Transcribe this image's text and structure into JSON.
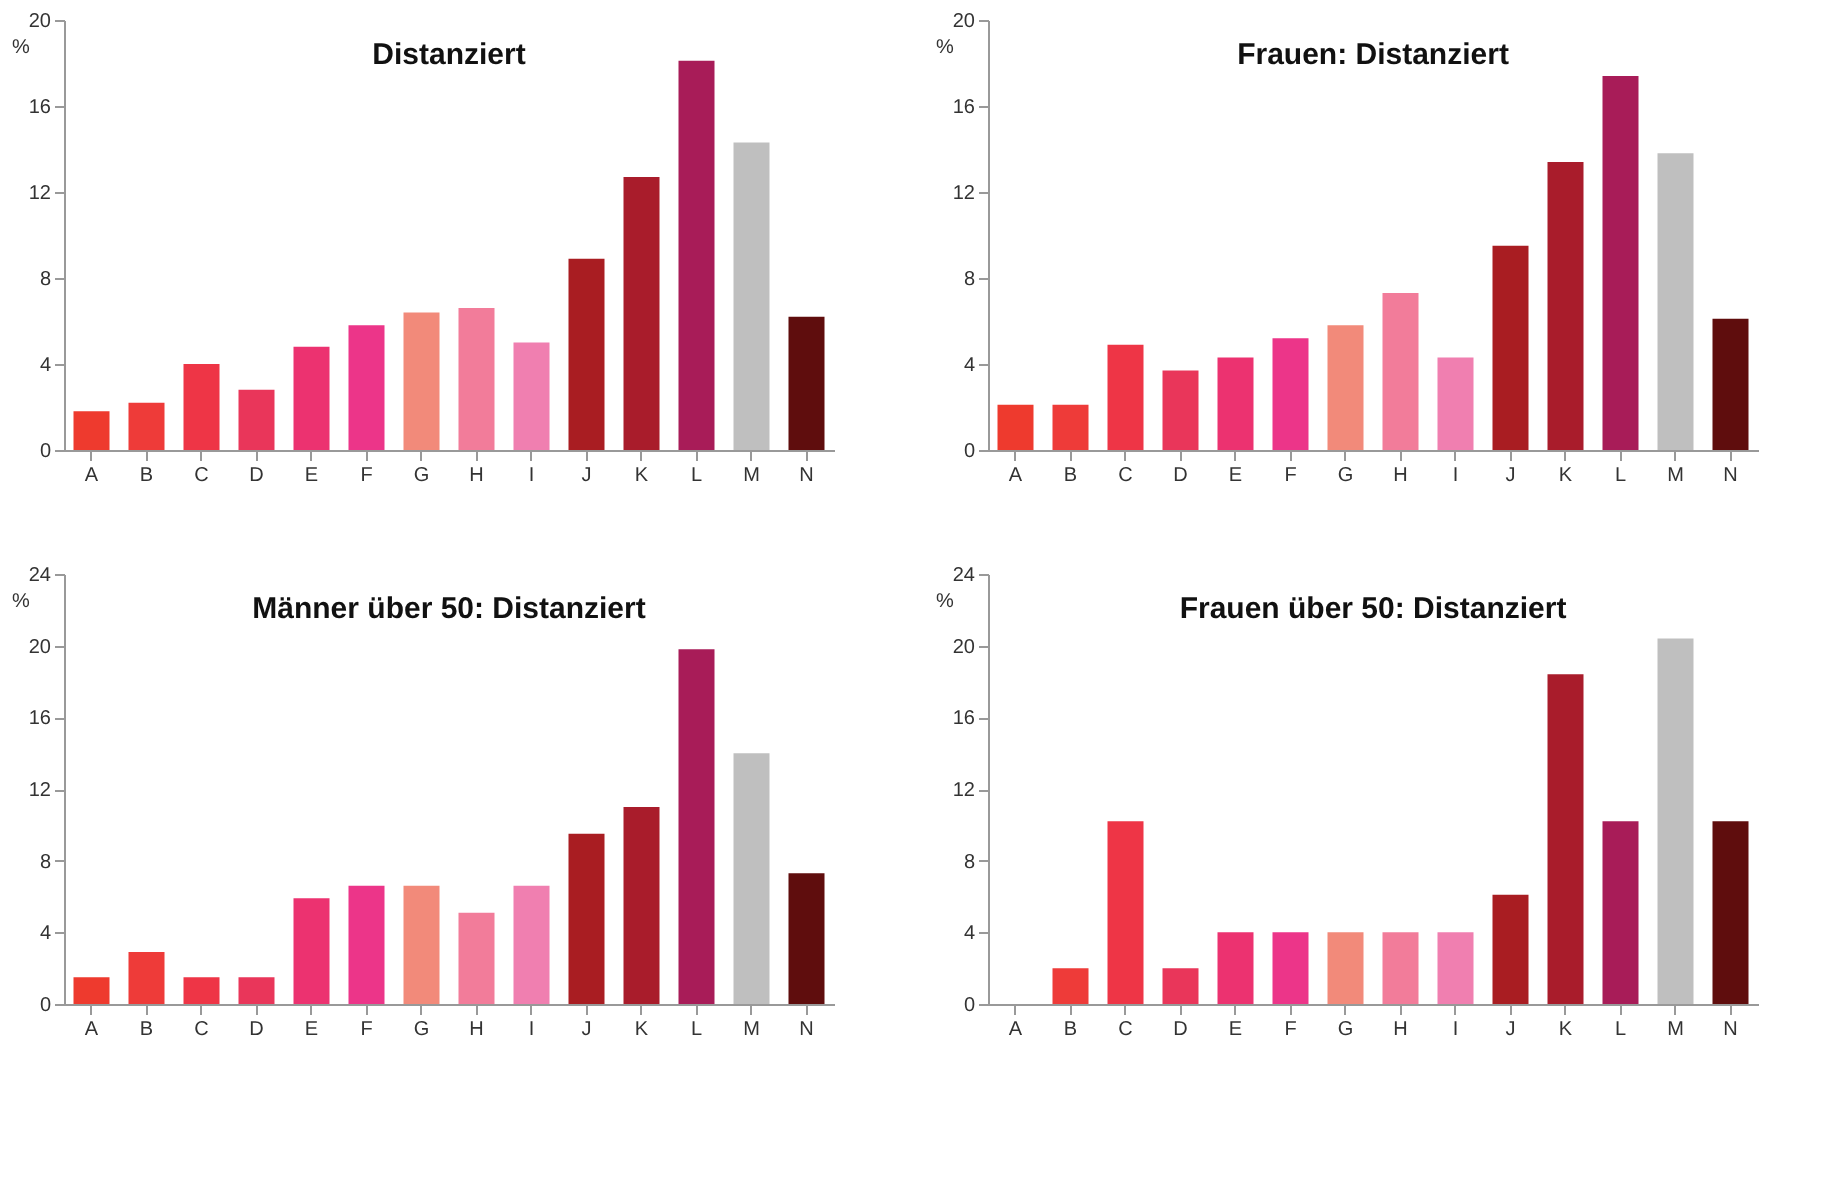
{
  "chart_data": [
    {
      "type": "bar",
      "title": "Distanziert",
      "ylabel": "%",
      "categories": [
        "A",
        "B",
        "C",
        "D",
        "E",
        "F",
        "G",
        "H",
        "I",
        "J",
        "K",
        "L",
        "M",
        "N"
      ],
      "values": [
        1.8,
        2.2,
        4.0,
        2.8,
        4.8,
        5.8,
        6.4,
        6.6,
        5.0,
        8.9,
        12.7,
        18.1,
        14.3,
        6.2
      ],
      "colors": [
        "#ee3a2e",
        "#ee3b39",
        "#ee3546",
        "#e9365a",
        "#ec3270",
        "#ec3589",
        "#f28a7a",
        "#f27c9a",
        "#f07fb0",
        "#a91d22",
        "#a91c2b",
        "#a81c58",
        "#bfbfbf",
        "#5f0d0d"
      ],
      "ylim": [
        0,
        20
      ],
      "yticks": [
        0,
        4,
        8,
        12,
        16,
        20
      ],
      "grid": false
    },
    {
      "type": "bar",
      "title": "Frauen: Distanziert",
      "ylabel": "%",
      "categories": [
        "A",
        "B",
        "C",
        "D",
        "E",
        "F",
        "G",
        "H",
        "I",
        "J",
        "K",
        "L",
        "M",
        "N"
      ],
      "values": [
        2.1,
        2.1,
        4.9,
        3.7,
        4.3,
        5.2,
        5.8,
        7.3,
        4.3,
        9.5,
        13.4,
        17.4,
        13.8,
        6.1
      ],
      "colors": [
        "#ee3a2e",
        "#ee3b39",
        "#ee3546",
        "#e9365a",
        "#ec3270",
        "#ec3589",
        "#f28a7a",
        "#f27c9a",
        "#f07fb0",
        "#a91d22",
        "#a91c2b",
        "#a81c58",
        "#bfbfbf",
        "#5f0d0d"
      ],
      "ylim": [
        0,
        20
      ],
      "yticks": [
        0,
        4,
        8,
        12,
        16,
        20
      ],
      "grid": false
    },
    {
      "type": "bar",
      "title": "Männer über 50: Distanziert",
      "ylabel": "%",
      "categories": [
        "A",
        "B",
        "C",
        "D",
        "E",
        "F",
        "G",
        "H",
        "I",
        "J",
        "K",
        "L",
        "M",
        "N"
      ],
      "values": [
        1.5,
        2.9,
        1.5,
        1.5,
        5.9,
        6.6,
        6.6,
        5.1,
        6.6,
        9.5,
        11.0,
        19.8,
        14.0,
        7.3
      ],
      "colors": [
        "#ee3a2e",
        "#ee3b39",
        "#ee3546",
        "#e9365a",
        "#ec3270",
        "#ec3589",
        "#f28a7a",
        "#f27c9a",
        "#f07fb0",
        "#a91d22",
        "#a91c2b",
        "#a81c58",
        "#bfbfbf",
        "#5f0d0d"
      ],
      "ylim": [
        0,
        24
      ],
      "yticks": [
        0,
        4,
        8,
        12,
        16,
        20,
        24
      ],
      "grid": false
    },
    {
      "type": "bar",
      "title": "Frauen über 50: Distanziert",
      "ylabel": "%",
      "categories": [
        "A",
        "B",
        "C",
        "D",
        "E",
        "F",
        "G",
        "H",
        "I",
        "J",
        "K",
        "L",
        "M",
        "N"
      ],
      "values": [
        0,
        2.0,
        10.2,
        2.0,
        4.0,
        4.0,
        4.0,
        4.0,
        4.0,
        6.1,
        18.4,
        10.2,
        20.4,
        10.2
      ],
      "colors": [
        "#ee3a2e",
        "#ee3b39",
        "#ee3546",
        "#e9365a",
        "#ec3270",
        "#ec3589",
        "#f28a7a",
        "#f27c9a",
        "#f07fb0",
        "#a91d22",
        "#a91c2b",
        "#a81c58",
        "#bfbfbf",
        "#5f0d0d"
      ],
      "ylim": [
        0,
        24
      ],
      "yticks": [
        0,
        4,
        8,
        12,
        16,
        20,
        24
      ],
      "grid": false
    }
  ]
}
